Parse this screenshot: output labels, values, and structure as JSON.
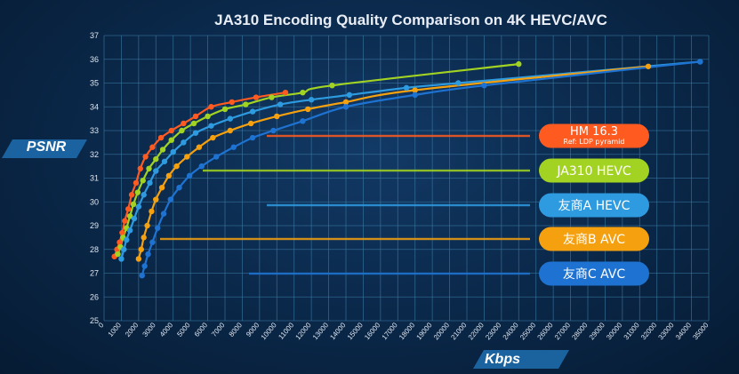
{
  "chart_data": {
    "type": "line",
    "title": "JA310 Encoding Quality Comparison on 4K HEVC/AVC",
    "xlabel": "Kbps",
    "ylabel": "PSNR",
    "xlim": [
      0,
      35000
    ],
    "ylim": [
      25,
      37
    ],
    "x_ticks": [
      0,
      1000,
      2000,
      3000,
      4000,
      5000,
      6000,
      7000,
      8000,
      9000,
      10000,
      11000,
      12000,
      13000,
      14000,
      15000,
      16000,
      17000,
      18000,
      19000,
      20000,
      21000,
      22000,
      23000,
      24000,
      25000,
      26000,
      27000,
      28000,
      29000,
      30000,
      31000,
      32000,
      33000,
      34000,
      35000
    ],
    "y_ticks": [
      25,
      26,
      27,
      28,
      29,
      30,
      31,
      32,
      33,
      34,
      35,
      36,
      37
    ],
    "grid": true,
    "legend_position": "right",
    "series": [
      {
        "name": "HM 16.3",
        "subtitle": "Ref: LDP pyramid",
        "color": "#ff5a1f",
        "x": [
          600,
          750,
          900,
          1050,
          1200,
          1400,
          1600,
          1850,
          2100,
          2400,
          2800,
          3300,
          3900,
          4600,
          5300,
          6200,
          7400,
          8800,
          10500
        ],
        "y": [
          27.7,
          28.0,
          28.3,
          28.7,
          29.2,
          29.7,
          30.3,
          30.8,
          31.4,
          31.9,
          32.3,
          32.7,
          33.0,
          33.3,
          33.6,
          34.0,
          34.2,
          34.4,
          34.6
        ]
      },
      {
        "name": "JA310 HEVC",
        "color": "#a3d322",
        "x": [
          800,
          950,
          1100,
          1300,
          1500,
          1700,
          1950,
          2250,
          2600,
          3000,
          3400,
          3900,
          4500,
          5200,
          6000,
          7000,
          8200,
          9700,
          11500,
          13200,
          24000
        ],
        "y": [
          27.8,
          28.1,
          28.5,
          28.9,
          29.4,
          29.9,
          30.4,
          30.9,
          31.4,
          31.8,
          32.2,
          32.6,
          33.0,
          33.3,
          33.6,
          33.9,
          34.1,
          34.4,
          34.6,
          34.9,
          35.8
        ]
      },
      {
        "name": "友商A HEVC",
        "color": "#2e9be0",
        "x": [
          1000,
          1150,
          1300,
          1500,
          1750,
          2000,
          2300,
          2650,
          3000,
          3500,
          4000,
          4600,
          5300,
          6200,
          7300,
          8600,
          10200,
          12000,
          14200,
          17500,
          20500,
          34500
        ],
        "y": [
          27.6,
          28.0,
          28.4,
          28.8,
          29.3,
          29.8,
          30.3,
          30.8,
          31.3,
          31.7,
          32.1,
          32.5,
          32.9,
          33.2,
          33.5,
          33.8,
          34.1,
          34.3,
          34.5,
          34.8,
          35.0,
          35.9
        ]
      },
      {
        "name": "友商B AVC",
        "color": "#f5a00f",
        "x": [
          2000,
          2150,
          2300,
          2500,
          2750,
          3000,
          3350,
          3750,
          4200,
          4800,
          5500,
          6300,
          7300,
          8500,
          10000,
          11800,
          14000,
          18000,
          31500
        ],
        "y": [
          27.6,
          28.0,
          28.5,
          29.0,
          29.6,
          30.1,
          30.6,
          31.1,
          31.5,
          31.9,
          32.3,
          32.7,
          33.0,
          33.3,
          33.6,
          33.9,
          34.2,
          34.7,
          35.7
        ]
      },
      {
        "name": "友商C AVC",
        "color": "#1e73d2",
        "x": [
          2200,
          2350,
          2550,
          2800,
          3100,
          3450,
          3850,
          4350,
          4950,
          5650,
          6500,
          7500,
          8600,
          9800,
          11500,
          14000,
          18000,
          22000,
          34500
        ],
        "y": [
          26.9,
          27.3,
          27.8,
          28.3,
          28.9,
          29.5,
          30.1,
          30.6,
          31.1,
          31.5,
          31.9,
          32.3,
          32.7,
          33.0,
          33.4,
          34.0,
          34.5,
          34.9,
          35.9
        ]
      }
    ]
  }
}
